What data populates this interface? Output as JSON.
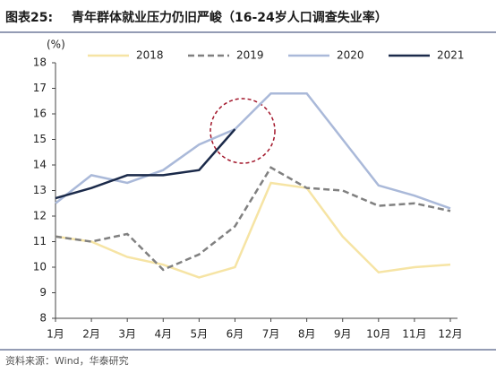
{
  "chart_data": {
    "type": "line",
    "title_label": "图表25:",
    "title": "青年群体就业压力仍旧严峻（16-24岁人口调查失业率）",
    "y_unit": "(%)",
    "source": "资料来源：Wind，华泰研究",
    "categories": [
      "1月",
      "2月",
      "3月",
      "4月",
      "5月",
      "6月",
      "7月",
      "8月",
      "9月",
      "10月",
      "11月",
      "12月"
    ],
    "series": [
      {
        "name": "2018",
        "color": "#f6e4a4",
        "style": "solid",
        "values": [
          11.2,
          11.0,
          10.4,
          10.1,
          9.6,
          10.0,
          13.3,
          13.1,
          11.2,
          9.8,
          10.0,
          10.1
        ]
      },
      {
        "name": "2019",
        "color": "#808080",
        "style": "dashed",
        "values": [
          11.2,
          11.0,
          11.3,
          9.9,
          10.5,
          11.6,
          13.9,
          13.1,
          13.0,
          12.4,
          12.5,
          12.2
        ]
      },
      {
        "name": "2020",
        "color": "#aab9d9",
        "style": "solid",
        "values": [
          12.5,
          13.6,
          13.3,
          13.8,
          14.8,
          15.4,
          16.8,
          16.8,
          15.0,
          13.2,
          12.8,
          12.3
        ]
      },
      {
        "name": "2021",
        "color": "#1b2a4a",
        "style": "solid",
        "values": [
          12.7,
          13.1,
          13.6,
          13.6,
          13.8,
          15.4,
          null,
          null,
          null,
          null,
          null,
          null
        ]
      }
    ],
    "ylim": [
      8,
      18
    ],
    "yticks": [
      8,
      9,
      10,
      11,
      12,
      13,
      14,
      15,
      16,
      17,
      18
    ],
    "grid": false,
    "legend": "top"
  }
}
